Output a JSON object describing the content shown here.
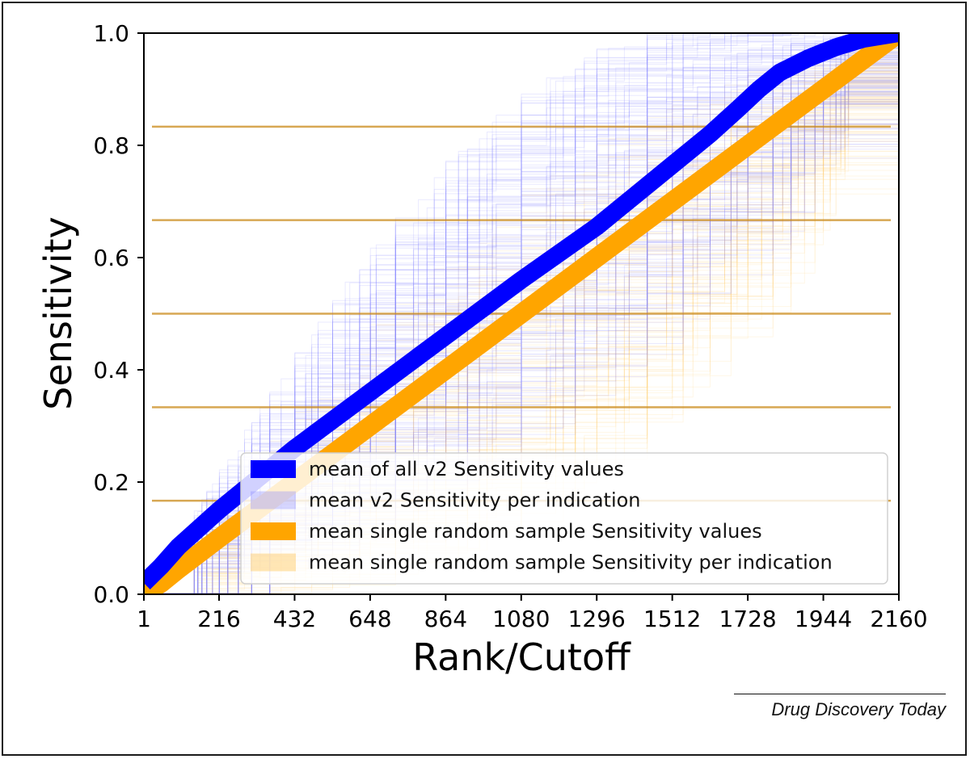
{
  "chart_data": {
    "type": "line",
    "xlabel": "Rank/Cutoff",
    "ylabel": "Sensitivity",
    "xlim": [
      1,
      2160
    ],
    "ylim": [
      0.0,
      1.0
    ],
    "x_ticks": [
      "1",
      "216",
      "432",
      "648",
      "864",
      "1080",
      "1296",
      "1512",
      "1728",
      "1944",
      "2160"
    ],
    "x_tick_values": [
      1,
      216,
      432,
      648,
      864,
      1080,
      1296,
      1512,
      1728,
      1944,
      2160
    ],
    "y_ticks": [
      "0.0",
      "0.2",
      "0.4",
      "0.6",
      "0.8",
      "1.0"
    ],
    "y_tick_values": [
      0.0,
      0.2,
      0.4,
      0.6,
      0.8,
      1.0
    ],
    "grid": false,
    "legend_position": "lower-right",
    "series": [
      {
        "name": "mean of all v2 Sensitivity values",
        "style": "thick-line",
        "color": "#0000ff",
        "x": [
          1,
          50,
          100,
          216,
          432,
          648,
          864,
          1080,
          1296,
          1404,
          1512,
          1620,
          1700,
          1760,
          1820,
          1900,
          1980,
          2060,
          2160
        ],
        "y": [
          0.02,
          0.05,
          0.085,
          0.15,
          0.26,
          0.36,
          0.46,
          0.56,
          0.655,
          0.71,
          0.765,
          0.82,
          0.865,
          0.9,
          0.93,
          0.955,
          0.975,
          0.99,
          1.0
        ]
      },
      {
        "name": "mean v2 Sensitivity per indication",
        "style": "faint-lines",
        "color": "#8a8aff"
      },
      {
        "name": "mean single random sample Sensitivity values",
        "style": "thick-line",
        "color": "#ffa500",
        "x": [
          1,
          50,
          100,
          216,
          432,
          648,
          864,
          1080,
          1296,
          1512,
          1728,
          1944,
          2160
        ],
        "y": [
          0.0,
          0.02,
          0.045,
          0.1,
          0.2,
          0.3,
          0.4,
          0.5,
          0.6,
          0.7,
          0.8,
          0.9,
          1.0
        ]
      },
      {
        "name": "mean single random sample Sensitivity per indication",
        "style": "faint-lines",
        "color": "#ffd27a"
      }
    ],
    "horizontal_bands": [
      0.1667,
      0.3333,
      0.5,
      0.6667,
      0.8333
    ]
  },
  "credit": "Drug Discovery Today",
  "colors": {
    "blue_mean": "#0000ff",
    "blue_faint": "#8a8aff",
    "orange_mean": "#ffa500",
    "orange_faint": "#ffd27a"
  }
}
